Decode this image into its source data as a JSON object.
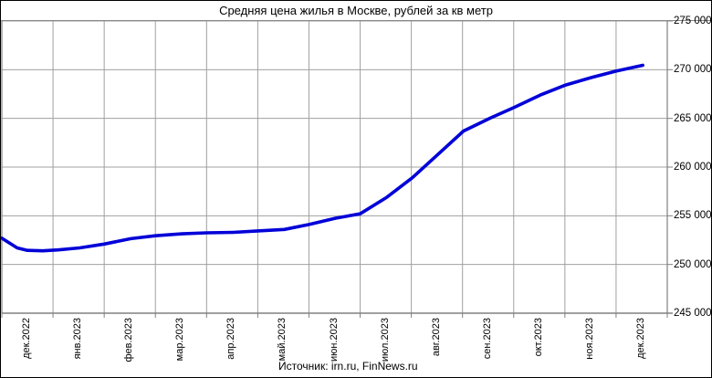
{
  "title": "Средняя цена жилья в Москве, рублей за кв метр",
  "source_note": "Источник: irn.ru, FinNews.ru",
  "colors": {
    "line": "#0000d8",
    "grid": "#a0a0a0",
    "axis": "#808080",
    "frame": "#000000",
    "background": "#ffffff",
    "text": "#000000"
  },
  "chart_data": {
    "type": "line",
    "title": "Средняя цена жилья в Москве, рублей за кв метр",
    "xlabel": "",
    "ylabel": "",
    "categories": [
      "дек.2022",
      "янв.2023",
      "фев.2023",
      "мар.2023",
      "апр.2023",
      "май.2023",
      "июн.2023",
      "июл.2023",
      "авг.2023",
      "сен.2023",
      "окт.2023",
      "ноя.2023",
      "дек.2023"
    ],
    "values": [
      251500,
      251700,
      252650,
      253150,
      253300,
      253600,
      254750,
      256900,
      261300,
      265050,
      267400,
      269200,
      270450
    ],
    "ylim": [
      245000,
      275000
    ],
    "ytick_step": 5000,
    "ytick_labels": [
      "245 000",
      "250 000",
      "255 000",
      "260 000",
      "265 000",
      "270 000",
      "275 000"
    ],
    "grid": true,
    "legend": "none",
    "series_name": "Средняя цена жилья в Москве",
    "line_color": "#0000d8",
    "polyline_month_units_and_value": [
      [
        0.0,
        252700
      ],
      [
        0.3,
        251700
      ],
      [
        0.5,
        251450
      ],
      [
        0.8,
        251400
      ],
      [
        1.1,
        251500
      ],
      [
        1.52,
        251700
      ],
      [
        2.0,
        252100
      ],
      [
        2.52,
        252650
      ],
      [
        3.0,
        252950
      ],
      [
        3.52,
        253150
      ],
      [
        4.0,
        253250
      ],
      [
        4.52,
        253300
      ],
      [
        5.0,
        253450
      ],
      [
        5.52,
        253600
      ],
      [
        6.0,
        254100
      ],
      [
        6.52,
        254750
      ],
      [
        7.0,
        255200
      ],
      [
        7.52,
        256900
      ],
      [
        8.02,
        258900
      ],
      [
        8.52,
        261300
      ],
      [
        9.02,
        263700
      ],
      [
        9.55,
        265050
      ],
      [
        10.0,
        266100
      ],
      [
        10.52,
        267400
      ],
      [
        11.0,
        268400
      ],
      [
        11.52,
        269200
      ],
      [
        12.0,
        269850
      ],
      [
        12.52,
        270450
      ]
    ],
    "source": "Источник: irn.ru, FinNews.ru"
  }
}
